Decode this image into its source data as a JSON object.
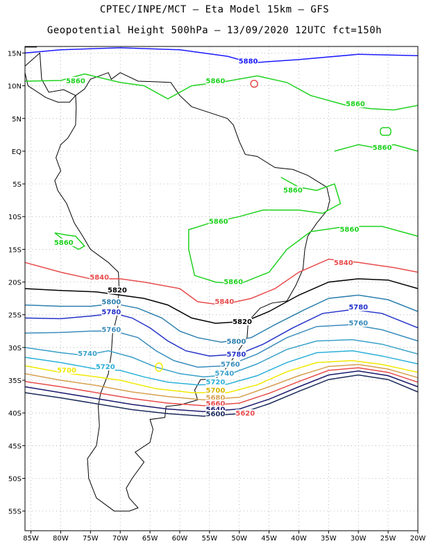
{
  "header": {
    "line1": "CPTEC/INPE/MCT –  Eta Model 15km – GFS",
    "line2": "Geopotential Height 500hPa – 13/09/2020 12UTC fct=150h"
  },
  "axes": {
    "lat_labels": [
      "15N",
      "10N",
      "5N",
      "EQ",
      "5S",
      "10S",
      "15S",
      "20S",
      "25S",
      "30S",
      "35S",
      "40S",
      "45S",
      "50S",
      "55S"
    ],
    "lat_values": [
      15,
      10,
      5,
      0,
      -5,
      -10,
      -15,
      -20,
      -25,
      -30,
      -35,
      -40,
      -45,
      -50,
      -55
    ],
    "lon_labels": [
      "85W",
      "80W",
      "75W",
      "70W",
      "65W",
      "60W",
      "55W",
      "50W",
      "45W",
      "40W",
      "35W",
      "30W",
      "25W",
      "20W"
    ],
    "lon_values": [
      -85,
      -80,
      -75,
      -70,
      -65,
      -60,
      -55,
      -50,
      -45,
      -40,
      -35,
      -30,
      -25,
      -20
    ]
  },
  "map_extent": {
    "lon_min": -86,
    "lon_max": -20,
    "lat_min": -58,
    "lat_max": 16
  },
  "contour_levels": [
    {
      "value": 5880,
      "color": "#1a1aff"
    },
    {
      "value": 5860,
      "color": "#1ed21e"
    },
    {
      "value": 5840,
      "color": "#e84b4b"
    },
    {
      "value": 5820,
      "color": "#000000"
    },
    {
      "value": 5800,
      "color": "#2c7fae"
    },
    {
      "value": 5780,
      "color": "#2432c8"
    },
    {
      "value": 5760,
      "color": "#3a8cbc"
    },
    {
      "value": 5740,
      "color": "#3aa0c8"
    },
    {
      "value": 5720,
      "color": "#2bb0d8"
    },
    {
      "value": 5700,
      "color": "#f0e800"
    },
    {
      "value": 5680,
      "color": "#d6a050"
    },
    {
      "value": 5660,
      "color": "#e84b4b"
    },
    {
      "value": 5640,
      "color": "#1a1a6e"
    },
    {
      "value": 5620,
      "color": "#1a2a5a"
    }
  ],
  "contour_labels": [
    {
      "text": "5880",
      "lon": -48.5,
      "lat": 13.5,
      "color": "#1a1aff"
    },
    {
      "text": "5860",
      "lon": -77.5,
      "lat": 10.5,
      "color": "#1ed21e"
    },
    {
      "text": "5860",
      "lon": -54,
      "lat": 10.5,
      "color": "#1ed21e"
    },
    {
      "text": "5860",
      "lon": -30.5,
      "lat": 7,
      "color": "#1ed21e"
    },
    {
      "text": "5860",
      "lon": -26,
      "lat": 0.3,
      "color": "#1ed21e"
    },
    {
      "text": "5860",
      "lon": -41,
      "lat": -6.2,
      "color": "#1ed21e"
    },
    {
      "text": "5860",
      "lon": -53.5,
      "lat": -11,
      "color": "#1ed21e"
    },
    {
      "text": "5860",
      "lon": -31.5,
      "lat": -12.2,
      "color": "#1ed21e"
    },
    {
      "text": "5860",
      "lon": -79.5,
      "lat": -14.2,
      "color": "#1ed21e"
    },
    {
      "text": "5860",
      "lon": -51,
      "lat": -20.2,
      "color": "#1ed21e"
    },
    {
      "text": "5840",
      "lon": -32.5,
      "lat": -17.3,
      "color": "#e84b4b"
    },
    {
      "text": "5840",
      "lon": -73.5,
      "lat": -19.5,
      "color": "#e84b4b"
    },
    {
      "text": "5840",
      "lon": -52.5,
      "lat": -23.2,
      "color": "#e84b4b"
    },
    {
      "text": "5820",
      "lon": -70.5,
      "lat": -21.5,
      "color": "#000000"
    },
    {
      "text": "5820",
      "lon": -49.5,
      "lat": -26.3,
      "color": "#000000"
    },
    {
      "text": "5800",
      "lon": -71.5,
      "lat": -23.3,
      "color": "#2c7fae"
    },
    {
      "text": "5800",
      "lon": -50.5,
      "lat": -29.3,
      "color": "#2c7fae"
    },
    {
      "text": "5780",
      "lon": -71.5,
      "lat": -24.8,
      "color": "#2432c8"
    },
    {
      "text": "5780",
      "lon": -30,
      "lat": -24.1,
      "color": "#2432c8"
    },
    {
      "text": "5780",
      "lon": -50.5,
      "lat": -31.3,
      "color": "#2432c8"
    },
    {
      "text": "5760",
      "lon": -71.5,
      "lat": -27.5,
      "color": "#3a8cbc"
    },
    {
      "text": "5760",
      "lon": -30,
      "lat": -26.5,
      "color": "#3a8cbc"
    },
    {
      "text": "5760",
      "lon": -51.5,
      "lat": -32.8,
      "color": "#3a8cbc"
    },
    {
      "text": "5740",
      "lon": -75.5,
      "lat": -31.2,
      "color": "#3aa0c8"
    },
    {
      "text": "5740",
      "lon": -52.5,
      "lat": -34.2,
      "color": "#3aa0c8"
    },
    {
      "text": "5720",
      "lon": -72.5,
      "lat": -33.2,
      "color": "#2bb0d8"
    },
    {
      "text": "5720",
      "lon": -54,
      "lat": -35.5,
      "color": "#2bb0d8"
    },
    {
      "text": "5700",
      "lon": -79,
      "lat": -33.7,
      "color": "#f0e800"
    },
    {
      "text": "5700",
      "lon": -54,
      "lat": -36.8,
      "color": "#d6b400"
    },
    {
      "text": "5680",
      "lon": -54,
      "lat": -37.9,
      "color": "#d6a050"
    },
    {
      "text": "5660",
      "lon": -54,
      "lat": -38.8,
      "color": "#e84b4b"
    },
    {
      "text": "5640",
      "lon": -54,
      "lat": -39.7,
      "color": "#1a1a6e"
    },
    {
      "text": "5620",
      "lon": -49,
      "lat": -40.3,
      "color": "#e84b4b"
    },
    {
      "text": "5600",
      "lon": -54,
      "lat": -40.4,
      "color": "#1a2a5a"
    }
  ]
}
